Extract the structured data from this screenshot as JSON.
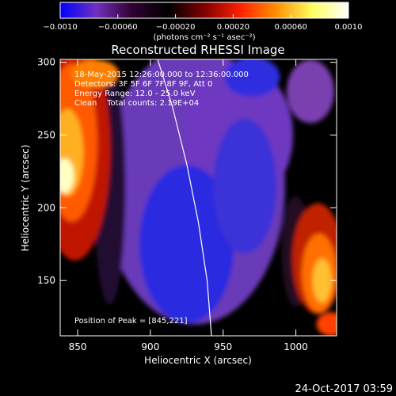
{
  "chart_data": {
    "type": "heatmap",
    "title": "Reconstructed RHESSI Image",
    "xlabel": "Heliocentric X (arcsec)",
    "ylabel": "Heliocentric Y (arcsec)",
    "xlim": [
      838,
      1028
    ],
    "ylim": [
      112,
      302
    ],
    "xticks": [
      "850",
      "900",
      "950",
      "1000"
    ],
    "xtick_values": [
      850,
      900,
      950,
      1000
    ],
    "yticks": [
      "150",
      "200",
      "250",
      "300"
    ],
    "ytick_values": [
      150,
      200,
      250,
      300
    ],
    "colorbar": {
      "range": [
        -0.001,
        0.001
      ],
      "ticks": [
        "−0.0010",
        "−0.00060",
        "−0.00020",
        "0.00020",
        "0.00060",
        "0.0010"
      ],
      "tick_values": [
        -0.001,
        -0.0006,
        -0.0002,
        0.0002,
        0.0006,
        0.001
      ],
      "unit_label": "(photons cm⁻² s⁻¹ asec⁻²)",
      "colormap": [
        "#0000ff",
        "#7030c0",
        "#300030",
        "#000000",
        "#800000",
        "#ff2000",
        "#ff9000",
        "#ffff60",
        "#ffffff"
      ]
    },
    "annotations": [
      "18-May-2015 12:26:00.000 to 12:36:00.000",
      "Detectors: 3F 5F 6F 7F 8F 9F, Att 0",
      "Energy Range: 12.0 - 25.0 keV",
      "Clean    Total counts: 2.19E+04"
    ],
    "peak_label": "Position of Peak = [845,221]",
    "peak": [
      845,
      221
    ],
    "limb_points": [
      [
        905,
        302
      ],
      [
        915,
        270
      ],
      [
        925,
        230
      ],
      [
        933,
        190
      ],
      [
        939,
        150
      ],
      [
        942,
        112
      ]
    ]
  },
  "footer": {
    "date": "24-Oct-2017 03:59"
  }
}
